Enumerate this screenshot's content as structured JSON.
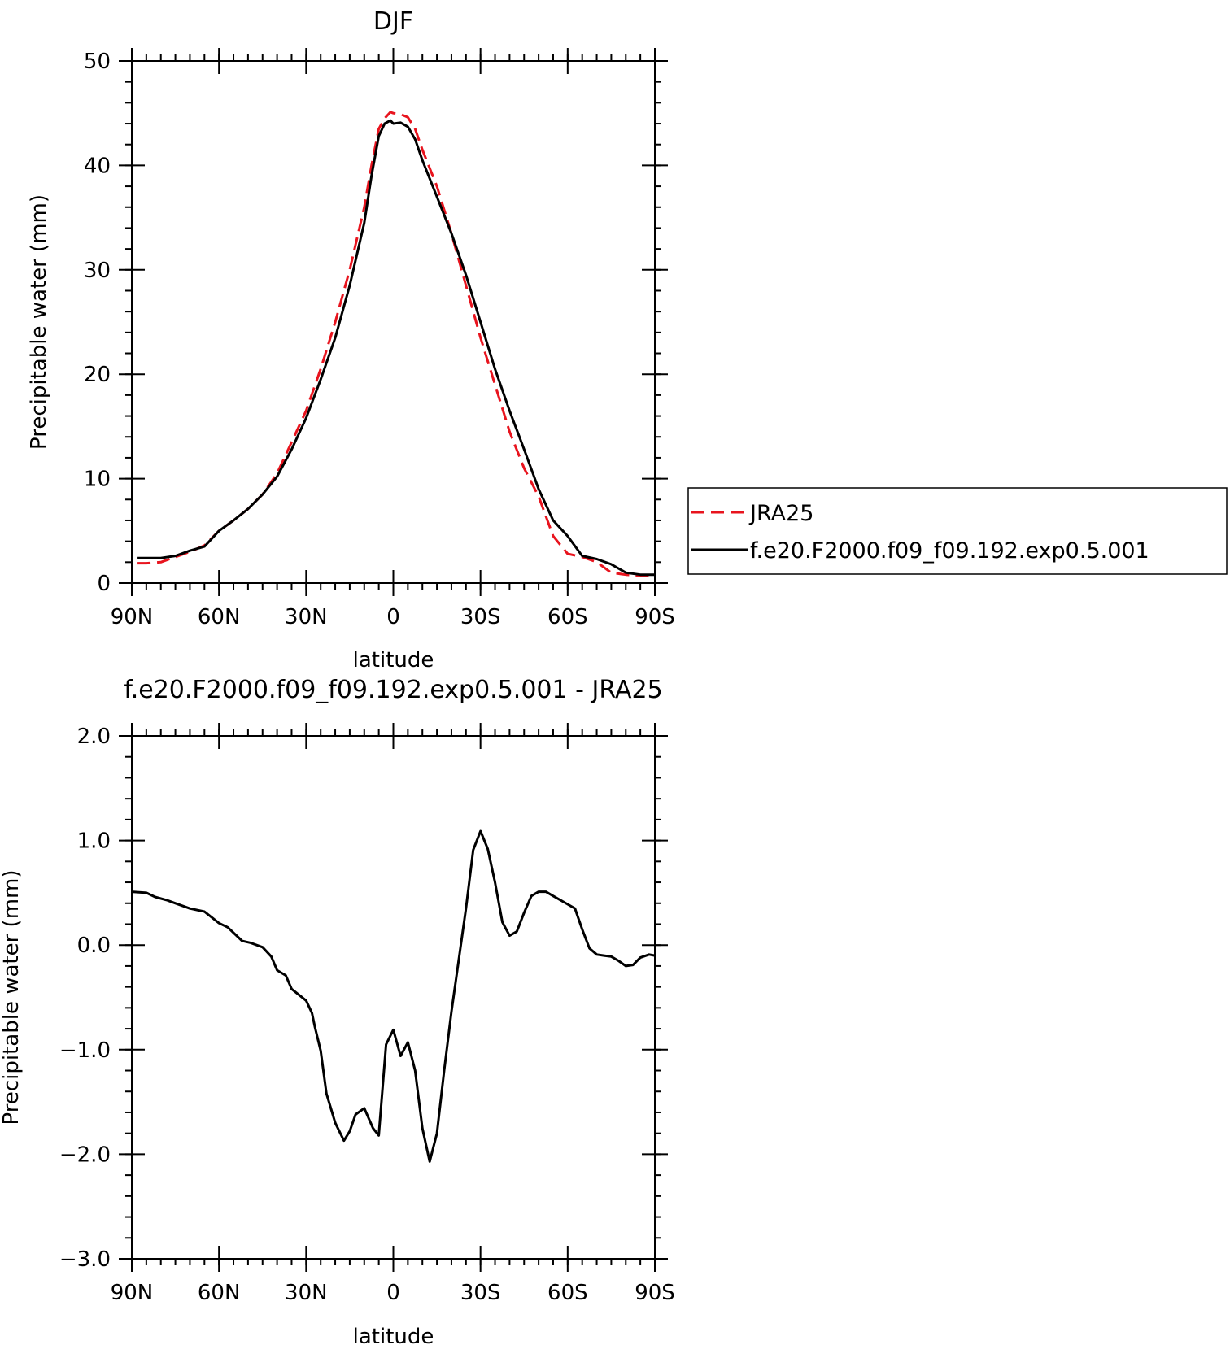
{
  "chart_data": [
    {
      "type": "line",
      "title": "DJF",
      "xlabel": "latitude",
      "ylabel": "Precipitable water (mm)",
      "xlim": [
        90,
        -90
      ],
      "ylim": [
        0,
        50
      ],
      "xticks": [
        90,
        60,
        30,
        0,
        -30,
        -60,
        -90
      ],
      "xtick_labels": [
        "90N",
        "60N",
        "30N",
        "0",
        "30S",
        "60S",
        "90S"
      ],
      "yticks": [
        0,
        10,
        20,
        30,
        40,
        50
      ],
      "ytick_labels": [
        "0",
        "10",
        "20",
        "30",
        "40",
        "50"
      ],
      "grid": false,
      "legend_position": "right",
      "series": [
        {
          "name": "JRA25",
          "color": "#e8141e",
          "dash": "dashed",
          "x": [
            88,
            85,
            80,
            75,
            70,
            65,
            60,
            55,
            50,
            45,
            40,
            35,
            30,
            25,
            20,
            15,
            10,
            7.5,
            5,
            3,
            1,
            0,
            -2.5,
            -5,
            -7.5,
            -10,
            -15,
            -20,
            -25,
            -30,
            -35,
            -40,
            -45,
            -50,
            -55,
            -60,
            -65,
            -70,
            -75,
            -80,
            -85,
            -88,
            -90
          ],
          "y": [
            1.9,
            1.9,
            2.0,
            2.5,
            3.0,
            3.6,
            5.0,
            6.0,
            7.1,
            8.5,
            10.5,
            13.5,
            16.5,
            20.5,
            25.0,
            30.0,
            36.0,
            40.0,
            43.5,
            44.5,
            45.1,
            45.0,
            44.9,
            44.6,
            43.5,
            41.5,
            38.0,
            33.5,
            28.5,
            23.5,
            19.0,
            14.5,
            11.0,
            8.3,
            4.5,
            2.8,
            2.5,
            2.0,
            1.0,
            0.8,
            0.7,
            0.7,
            0.7
          ]
        },
        {
          "name": "f.e20.F2000.f09_f09.192.exp0.5.001",
          "color": "#000000",
          "dash": "solid",
          "x": [
            88,
            85,
            80,
            75,
            70,
            65,
            60,
            55,
            50,
            45,
            40,
            35,
            30,
            25,
            20,
            15,
            10,
            7.5,
            5,
            3,
            1,
            0,
            -2.5,
            -5,
            -7.5,
            -10,
            -15,
            -20,
            -25,
            -30,
            -35,
            -40,
            -45,
            -50,
            -55,
            -60,
            -65,
            -70,
            -75,
            -80,
            -85,
            -88,
            -90
          ],
          "y": [
            2.4,
            2.4,
            2.4,
            2.6,
            3.1,
            3.5,
            5.0,
            6.0,
            7.1,
            8.5,
            10.2,
            12.8,
            15.8,
            19.5,
            23.5,
            28.5,
            34.5,
            39.0,
            42.8,
            44.0,
            44.3,
            44.0,
            44.1,
            43.7,
            42.5,
            40.5,
            37.0,
            33.5,
            29.5,
            25.0,
            20.5,
            16.5,
            12.8,
            9.0,
            6.0,
            4.5,
            2.6,
            2.3,
            1.8,
            1.0,
            0.8,
            0.8,
            0.8
          ]
        }
      ]
    },
    {
      "type": "line",
      "title": "f.e20.F2000.f09_f09.192.exp0.5.001 - JRA25",
      "xlabel": "latitude",
      "ylabel": "Precipitable water (mm)",
      "xlim": [
        90,
        -90
      ],
      "ylim": [
        -3.0,
        2.0
      ],
      "xticks": [
        90,
        60,
        30,
        0,
        -30,
        -60,
        -90
      ],
      "xtick_labels": [
        "90N",
        "60N",
        "30N",
        "0",
        "30S",
        "60S",
        "90S"
      ],
      "yticks": [
        2.0,
        1.0,
        0.0,
        -1.0,
        -2.0,
        -3.0
      ],
      "ytick_labels": [
        "2.0",
        "1.0",
        "0.0",
        "−1.0",
        "−2.0",
        "−3.0"
      ],
      "grid": false,
      "series": [
        {
          "color": "#000000",
          "dash": "solid",
          "x": [
            90,
            85,
            82,
            78,
            75,
            70,
            65,
            60,
            57,
            52,
            49,
            45,
            42,
            40,
            37,
            35,
            30,
            28,
            27,
            25,
            23,
            20,
            17,
            15,
            13,
            10,
            7,
            5,
            2.5,
            0,
            -2.5,
            -5,
            -7.5,
            -10,
            -12.5,
            -15,
            -17.5,
            -20,
            -25,
            -27.5,
            -30,
            -32.5,
            -35,
            -37.5,
            -40,
            -42.5,
            -45,
            -47.5,
            -50,
            -52.5,
            -55,
            -60,
            -62.5,
            -65,
            -67.5,
            -70,
            -72.5,
            -75,
            -77.5,
            -80,
            -82.5,
            -85,
            -88,
            -90
          ],
          "y": [
            0.51,
            0.5,
            0.46,
            0.43,
            0.4,
            0.35,
            0.32,
            0.21,
            0.17,
            0.04,
            0.02,
            -0.02,
            -0.11,
            -0.24,
            -0.29,
            -0.42,
            -0.53,
            -0.65,
            -0.78,
            -1.01,
            -1.42,
            -1.7,
            -1.87,
            -1.78,
            -1.62,
            -1.56,
            -1.75,
            -1.82,
            -0.95,
            -0.81,
            -1.06,
            -0.93,
            -1.2,
            -1.75,
            -2.07,
            -1.8,
            -1.2,
            -0.64,
            0.35,
            0.91,
            1.09,
            0.92,
            0.6,
            0.22,
            0.09,
            0.13,
            0.31,
            0.47,
            0.51,
            0.51,
            0.47,
            0.39,
            0.35,
            0.15,
            -0.03,
            -0.09,
            -0.1,
            -0.11,
            -0.15,
            -0.2,
            -0.19,
            -0.12,
            -0.09,
            -0.1
          ]
        }
      ]
    }
  ]
}
